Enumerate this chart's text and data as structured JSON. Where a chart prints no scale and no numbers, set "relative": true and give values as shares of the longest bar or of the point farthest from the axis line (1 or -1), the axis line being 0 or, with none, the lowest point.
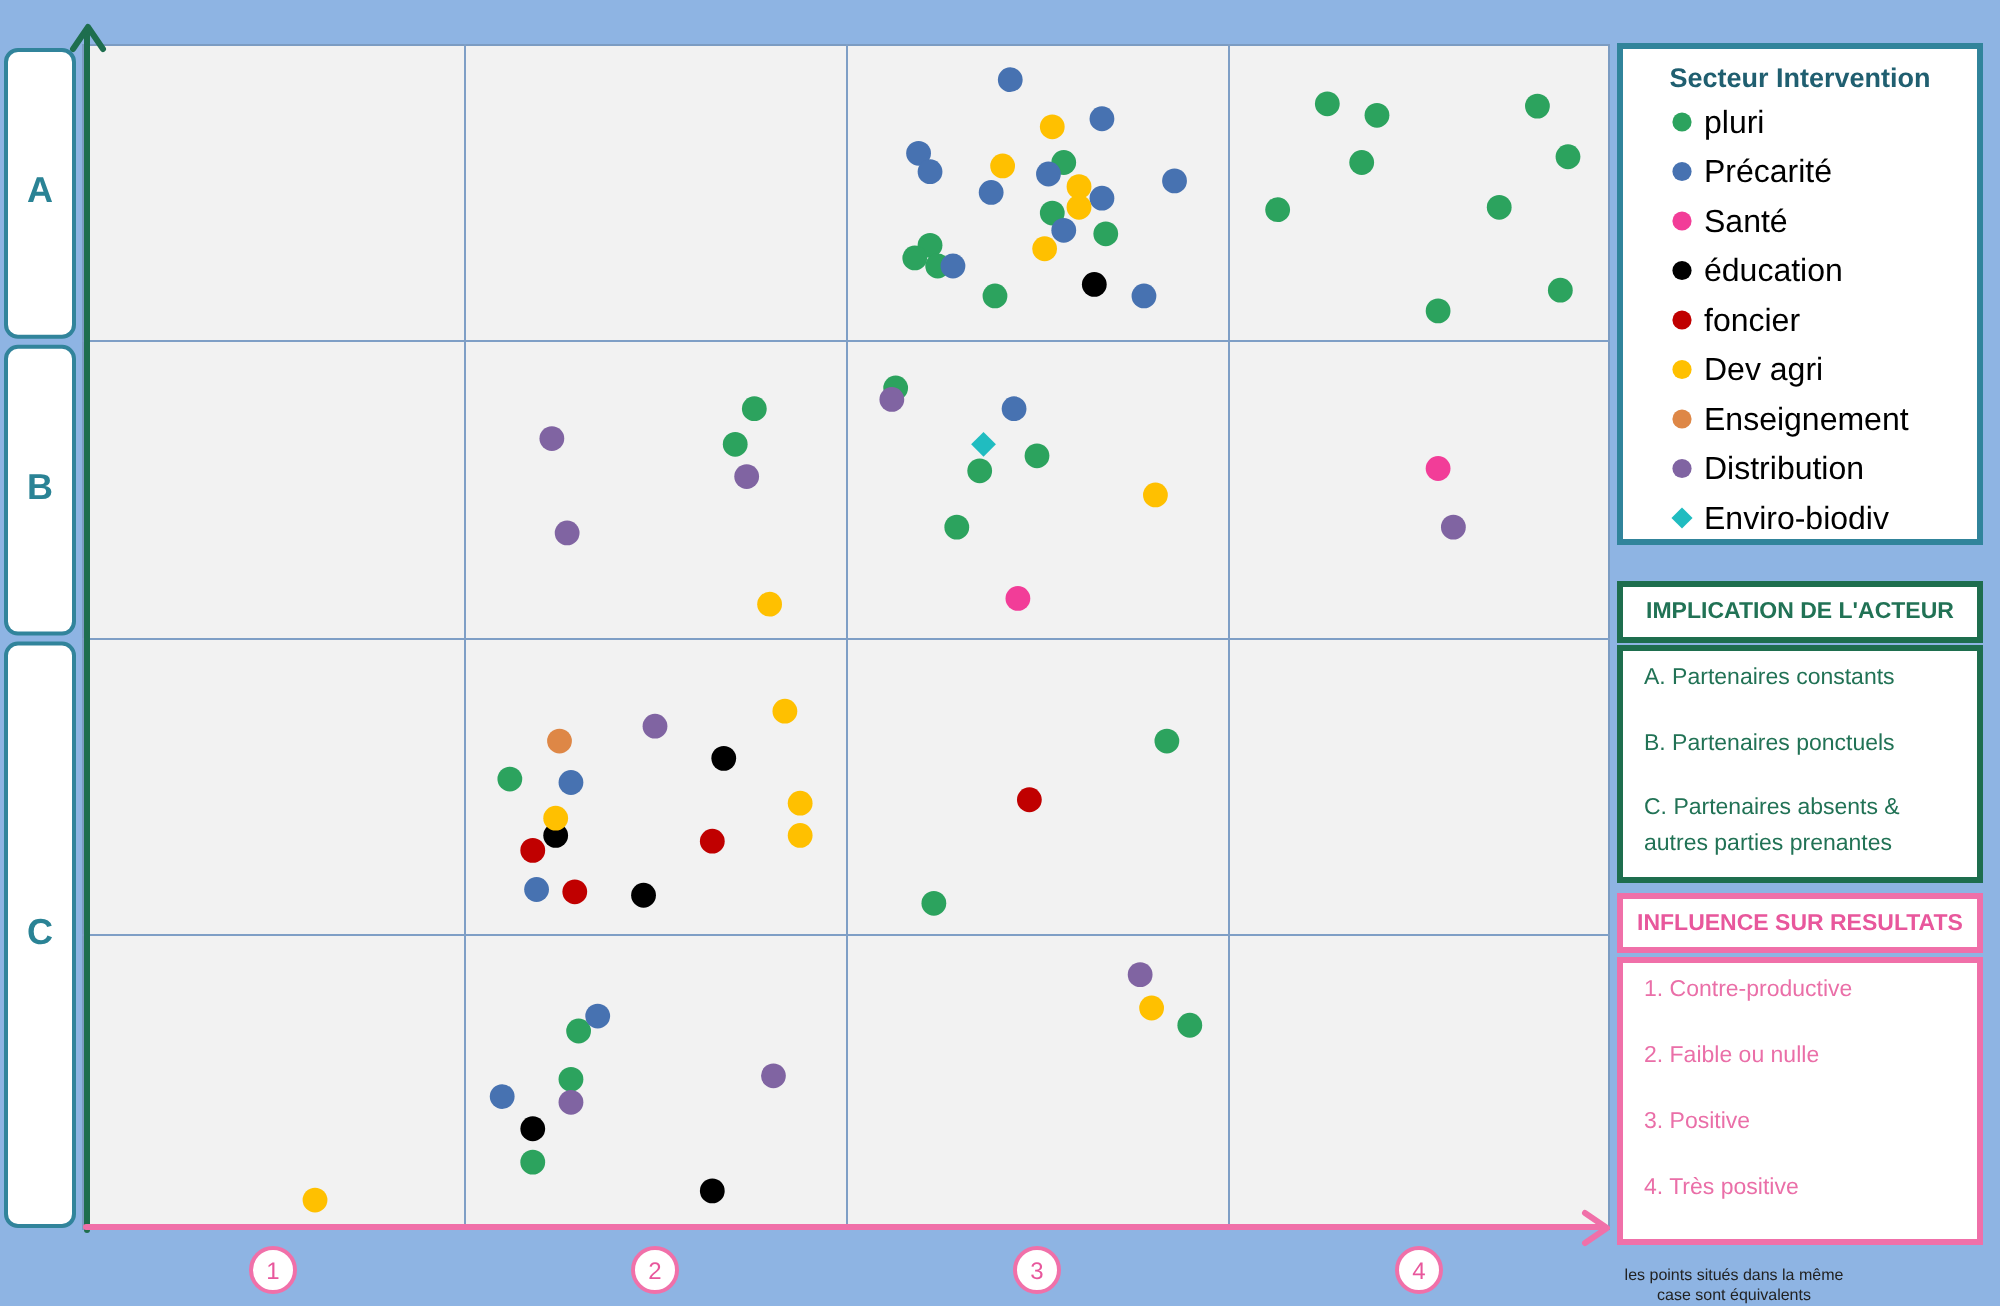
{
  "chart_data": {
    "type": "scatter",
    "relative": true,
    "xlabel": "INFLUENCE SUR RESULTATS",
    "ylabel": "IMPLICATION DE L'ACTEUR",
    "legend_title": "Secteur Intervention",
    "annotations": [
      "A",
      "B",
      "C",
      "A. Partenaires constants",
      "B. Partenaires ponctuels",
      "C. Partenaires absents & autres parties prenantes",
      "1. Contre-productive",
      "2. Faible ou nulle",
      "3. Positive",
      "4. Très positive",
      "les points situés dans la même case sont équivalents"
    ],
    "xlim": [
      0.5,
      4.5
    ],
    "xticks": [
      1,
      2,
      3,
      4
    ],
    "legend": "top right",
    "marker": "circle",
    "ref_lines": [
      {
        "axis": "x",
        "value": 1.5,
        "color": "#7f9fc6"
      },
      {
        "axis": "x",
        "value": 2.5,
        "color": "#7f9fc6"
      },
      {
        "axis": "x",
        "value": 3.5,
        "color": "#7f9fc6"
      },
      {
        "axis": "y",
        "value": 0.773,
        "color": "#7f9fc6"
      },
      {
        "axis": "y",
        "value": 0.515,
        "color": "#7f9fc6"
      },
      {
        "axis": "y",
        "value": 0.258,
        "color": "#7f9fc6"
      }
    ],
    "series": [
      {
        "name": "pluri",
        "color": "#2ca35e",
        "x": [
          3.07,
          3.04,
          3.18,
          2.72,
          2.68,
          2.74,
          2.89,
          3.76,
          3.89,
          4.31,
          4.39,
          3.85,
          3.63,
          4.21,
          4.37,
          4.05,
          2.26,
          2.21,
          2.63,
          2.85,
          3.0,
          2.79,
          1.62,
          1.8,
          1.78,
          1.68,
          3.34,
          2.73,
          3.4
        ],
        "values": [
          0.928,
          0.884,
          0.866,
          0.856,
          0.845,
          0.838,
          0.812,
          0.979,
          0.969,
          0.977,
          0.933,
          0.928,
          0.887,
          0.889,
          0.817,
          0.799,
          0.714,
          0.683,
          0.732,
          0.66,
          0.673,
          0.611,
          0.392,
          0.173,
          0.131,
          0.059,
          0.425,
          0.284,
          0.178
        ]
      },
      {
        "name": "Précarité",
        "color": "#4772b1",
        "x": [
          2.93,
          3.17,
          2.69,
          2.72,
          3.03,
          2.88,
          3.17,
          3.36,
          3.07,
          2.78,
          3.28,
          2.94,
          1.78,
          1.69,
          1.85,
          1.6
        ],
        "values": [
          1,
          0.966,
          0.936,
          0.92,
          0.918,
          0.902,
          0.897,
          0.912,
          0.869,
          0.838,
          0.812,
          0.714,
          0.389,
          0.296,
          0.186,
          0.116
        ]
      },
      {
        "name": "Santé",
        "color": "#f23d98",
        "x": [
          4.05,
          2.95
        ],
        "values": [
          0.662,
          0.549
        ]
      },
      {
        "name": "éducation",
        "color": "#000000",
        "x": [
          3.15,
          2.18,
          1.74,
          1.97,
          1.68,
          2.15
        ],
        "values": [
          0.822,
          0.41,
          0.343,
          0.291,
          0.088,
          0.034
        ]
      },
      {
        "name": "foncier",
        "color": "#c00000",
        "x": [
          1.68,
          2.15,
          1.79,
          2.98
        ],
        "values": [
          0.33,
          0.338,
          0.294,
          0.374
        ]
      },
      {
        "name": "Dev agri",
        "color": "#ffc000",
        "x": [
          3.04,
          2.91,
          3.11,
          3.11,
          3.02,
          2.3,
          3.31,
          2.34,
          2.38,
          2.38,
          1.74,
          3.3,
          1.11
        ],
        "values": [
          0.959,
          0.925,
          0.907,
          0.889,
          0.853,
          0.544,
          0.639,
          0.451,
          0.371,
          0.343,
          0.358,
          0.193,
          0.026
        ]
      },
      {
        "name": "Enseignement",
        "color": "#de8746",
        "x": [
          1.75
        ],
        "values": [
          0.425
        ]
      },
      {
        "name": "Distribution",
        "color": "#8064a2",
        "x": [
          4.09,
          1.73,
          1.77,
          2.24,
          2.62,
          2.0,
          2.31,
          1.78,
          3.27
        ],
        "values": [
          0.611,
          0.688,
          0.606,
          0.655,
          0.722,
          0.438,
          0.134,
          0.111,
          0.222
        ]
      },
      {
        "name": "Enviro-biodiv",
        "color": "#20bcc0",
        "marker": "diamond",
        "x": [
          2.86
        ],
        "values": [
          0.683
        ]
      }
    ]
  }
}
